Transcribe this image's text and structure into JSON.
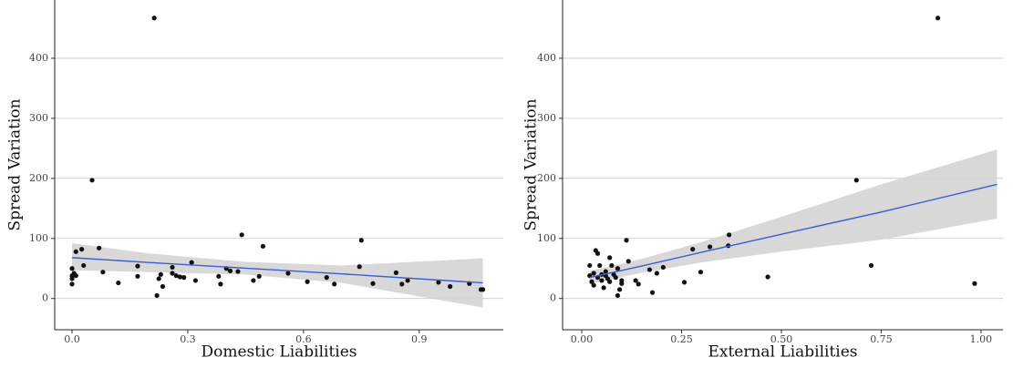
{
  "chart_data": [
    {
      "type": "scatter",
      "ylabel": "Spread Variation",
      "xlabel": "Domestic Liabilities",
      "color": "#111111",
      "x": [
        0.0,
        0.0,
        0.0,
        0.0,
        0.005,
        0.01,
        0.01,
        0.025,
        0.03,
        0.052,
        0.07,
        0.08,
        0.12,
        0.17,
        0.17,
        0.213,
        0.22,
        0.225,
        0.23,
        0.235,
        0.26,
        0.26,
        0.27,
        0.28,
        0.29,
        0.31,
        0.32,
        0.38,
        0.385,
        0.4,
        0.41,
        0.43,
        0.44,
        0.47,
        0.485,
        0.495,
        0.56,
        0.61,
        0.66,
        0.68,
        0.745,
        0.75,
        0.78,
        0.84,
        0.855,
        0.87,
        0.95,
        0.98,
        1.03,
        1.06,
        1.065
      ],
      "values": [
        33,
        38,
        24,
        50,
        42,
        78,
        38,
        82,
        55,
        197,
        84,
        44,
        26,
        54,
        37,
        467,
        5,
        33,
        40,
        20,
        52,
        42,
        38,
        36,
        35,
        60,
        30,
        37,
        24,
        50,
        46,
        45,
        106,
        30,
        37,
        87,
        42,
        28,
        35,
        24,
        53,
        97,
        25,
        43,
        24,
        30,
        27,
        20,
        25,
        15,
        15
      ],
      "fit": {
        "color": "#3a5fcd",
        "band_color": "#d4d4d4",
        "x": [
          0,
          0.2,
          0.45,
          0.7,
          1.065
        ],
        "values": [
          68,
          60,
          50.5,
          41,
          26
        ],
        "lower": [
          47,
          44,
          40,
          26,
          -15
        ],
        "upper": [
          92,
          75,
          61,
          55,
          67
        ]
      },
      "xlim": [
        -0.045,
        1.118
      ],
      "ylim": [
        -52,
        497
      ],
      "xticks": [
        {
          "value": 0,
          "label": "0.0"
        },
        0.3,
        0.6,
        0.9
      ],
      "yticks": [
        0,
        100,
        200,
        300,
        400
      ],
      "grid": true
    },
    {
      "type": "scatter",
      "ylabel": "Spread Variation",
      "xlabel": "External Liabilities",
      "color": "#111111",
      "x": [
        0.892,
        0.688,
        0.984,
        0.725,
        0.466,
        0.369,
        0.367,
        0.321,
        0.278,
        0.298,
        0.257,
        0.112,
        0.117,
        0.135,
        0.142,
        0.17,
        0.177,
        0.188,
        0.204,
        0.02,
        0.02,
        0.025,
        0.03,
        0.03,
        0.035,
        0.04,
        0.04,
        0.045,
        0.05,
        0.05,
        0.055,
        0.06,
        0.06,
        0.065,
        0.07,
        0.07,
        0.075,
        0.08,
        0.085,
        0.09,
        0.09,
        0.095,
        0.1,
        0.1
      ],
      "values": [
        467,
        197,
        25,
        55,
        36,
        106,
        88,
        86,
        82,
        44,
        27,
        97,
        62,
        30,
        24,
        48,
        10,
        42,
        52,
        38,
        55,
        28,
        42,
        22,
        80,
        75,
        35,
        55,
        40,
        30,
        18,
        38,
        45,
        33,
        68,
        28,
        55,
        40,
        35,
        50,
        5,
        15,
        25,
        30
      ],
      "fit": {
        "color": "#3a5fcd",
        "band_color": "#d4d4d4",
        "x": [
          0.02,
          0.15,
          0.3,
          0.5,
          0.75,
          1.04
        ],
        "values": [
          35,
          54,
          77,
          107,
          144,
          190
        ],
        "lower": [
          24,
          43,
          60,
          78,
          98,
          133
        ],
        "upper": [
          46,
          66,
          94,
          136,
          190,
          248
        ]
      },
      "xlim": [
        -0.048,
        1.055
      ],
      "ylim": [
        -52,
        497
      ],
      "xticks": [
        {
          "value": 0,
          "label": "0.00"
        },
        0.25,
        {
          "value": 0.5,
          "label": "0.50"
        },
        {
          "value": 0.75,
          "label": "0.75"
        },
        {
          "value": 1,
          "label": "1.00"
        }
      ],
      "yticks": [
        0,
        100,
        200,
        300,
        400
      ],
      "grid": true
    }
  ]
}
